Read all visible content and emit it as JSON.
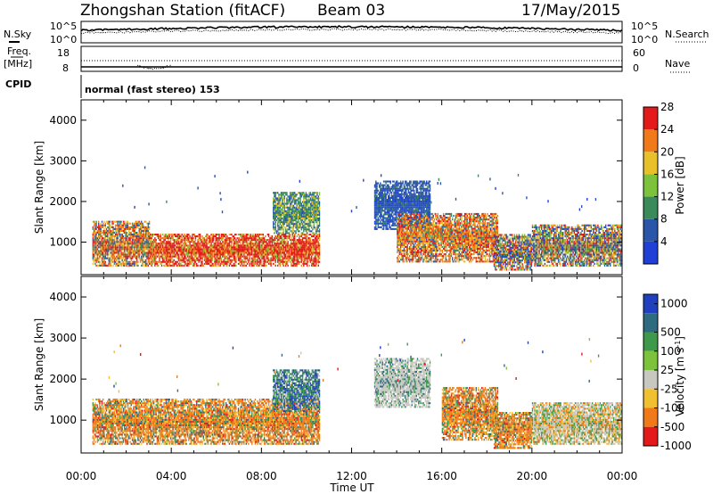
{
  "header": {
    "station": "Zhongshan Station (fitACF)",
    "beam": "Beam 03",
    "date": "17/May/2015"
  },
  "noise_panel": {
    "left_label": "N.Sky",
    "right_label": "N.Search",
    "left_ticks": [
      "10^5",
      "10^0"
    ],
    "right_ticks": [
      "10^5",
      "10^0"
    ]
  },
  "freq_panel": {
    "left_label": "Freq.",
    "left_unit": "[MHz]",
    "left_ticks": [
      "18",
      "8"
    ],
    "right_label": "Nave",
    "right_ticks": [
      "60",
      "0"
    ]
  },
  "cpid": {
    "label": "CPID",
    "value": "normal (fast stereo) 153"
  },
  "chart_data": [
    {
      "type": "heatmap",
      "title": "",
      "ylabel": "Slant Range [km]",
      "xlabel": "Time UT",
      "x_ticks": [
        "00:00",
        "04:00",
        "08:00",
        "12:00",
        "16:00",
        "20:00",
        "00:00"
      ],
      "xlim_hours": [
        0,
        24
      ],
      "ylim": [
        200,
        4500
      ],
      "y_ticks": [
        1000,
        2000,
        3000,
        4000
      ],
      "colorbar_label": "Power [dB]",
      "colorbar_ticks": [
        4,
        8,
        12,
        16,
        20,
        24,
        28
      ],
      "color_scale": [
        {
          "range": [
            0,
            6
          ],
          "color": "#1f3fd6"
        },
        {
          "range": [
            6,
            10
          ],
          "color": "#2a55a8"
        },
        {
          "range": [
            10,
            14
          ],
          "color": "#3a8a5a"
        },
        {
          "range": [
            14,
            18
          ],
          "color": "#7cc23a"
        },
        {
          "range": [
            18,
            22
          ],
          "color": "#e8c02a"
        },
        {
          "range": [
            22,
            26
          ],
          "color": "#f07a1a"
        },
        {
          "range": [
            26,
            30
          ],
          "color": "#e41a1a"
        }
      ],
      "echo_regions": [
        {
          "t": [
            0.5,
            3.0
          ],
          "range_km": [
            400,
            1500
          ],
          "level": "mixed-orange"
        },
        {
          "t": [
            3.0,
            10.6
          ],
          "range_km": [
            400,
            1200
          ],
          "level": "red"
        },
        {
          "t": [
            8.5,
            10.6
          ],
          "range_km": [
            1200,
            2200
          ],
          "level": "green-blue"
        },
        {
          "t": [
            13.0,
            15.5
          ],
          "range_km": [
            1300,
            2500
          ],
          "level": "blue"
        },
        {
          "t": [
            14.0,
            18.5
          ],
          "range_km": [
            500,
            1700
          ],
          "level": "orange-red"
        },
        {
          "t": [
            18.3,
            20.0
          ],
          "range_km": [
            300,
            1200
          ],
          "level": "mixed"
        },
        {
          "t": [
            20.0,
            24.0
          ],
          "range_km": [
            400,
            1400
          ],
          "level": "mixed"
        }
      ]
    },
    {
      "type": "heatmap",
      "title": "",
      "ylabel": "Slant Range [km]",
      "xlabel": "Time UT",
      "x_ticks": [
        "00:00",
        "04:00",
        "08:00",
        "12:00",
        "16:00",
        "20:00",
        "00:00"
      ],
      "xlim_hours": [
        0,
        24
      ],
      "ylim": [
        200,
        4500
      ],
      "y_ticks": [
        1000,
        2000,
        3000,
        4000
      ],
      "colorbar_label": "Velocity [m s^-1]",
      "colorbar_ticks": [
        1000,
        500,
        100,
        25,
        -25,
        -100,
        -500,
        -1000
      ],
      "color_scale": [
        {
          "range": [
            500,
            1000
          ],
          "color": "#2040c0"
        },
        {
          "range": [
            100,
            500
          ],
          "color": "#2e6a80"
        },
        {
          "range": [
            25,
            100
          ],
          "color": "#3e9a4a"
        },
        {
          "range": [
            0,
            25
          ],
          "color": "#7cc23a"
        },
        {
          "range": [
            -25,
            0
          ],
          "color": "#c8c8c0"
        },
        {
          "range": [
            -100,
            -25
          ],
          "color": "#f0c030"
        },
        {
          "range": [
            -500,
            -100
          ],
          "color": "#f07a1a"
        },
        {
          "range": [
            -1000,
            -500
          ],
          "color": "#e41a1a"
        }
      ],
      "echo_regions": [
        {
          "t": [
            0.5,
            10.6
          ],
          "range_km": [
            400,
            1500
          ],
          "level": "orange"
        },
        {
          "t": [
            8.5,
            10.6
          ],
          "range_km": [
            1200,
            2200
          ],
          "level": "green-blue"
        },
        {
          "t": [
            13.0,
            15.5
          ],
          "range_km": [
            1300,
            2500
          ],
          "level": "grey"
        },
        {
          "t": [
            16.0,
            18.5
          ],
          "range_km": [
            500,
            1800
          ],
          "level": "orange"
        },
        {
          "t": [
            18.3,
            20.0
          ],
          "range_km": [
            300,
            1200
          ],
          "level": "orange"
        },
        {
          "t": [
            20.0,
            24.0
          ],
          "range_km": [
            400,
            1400
          ],
          "level": "grey-green"
        }
      ]
    }
  ]
}
